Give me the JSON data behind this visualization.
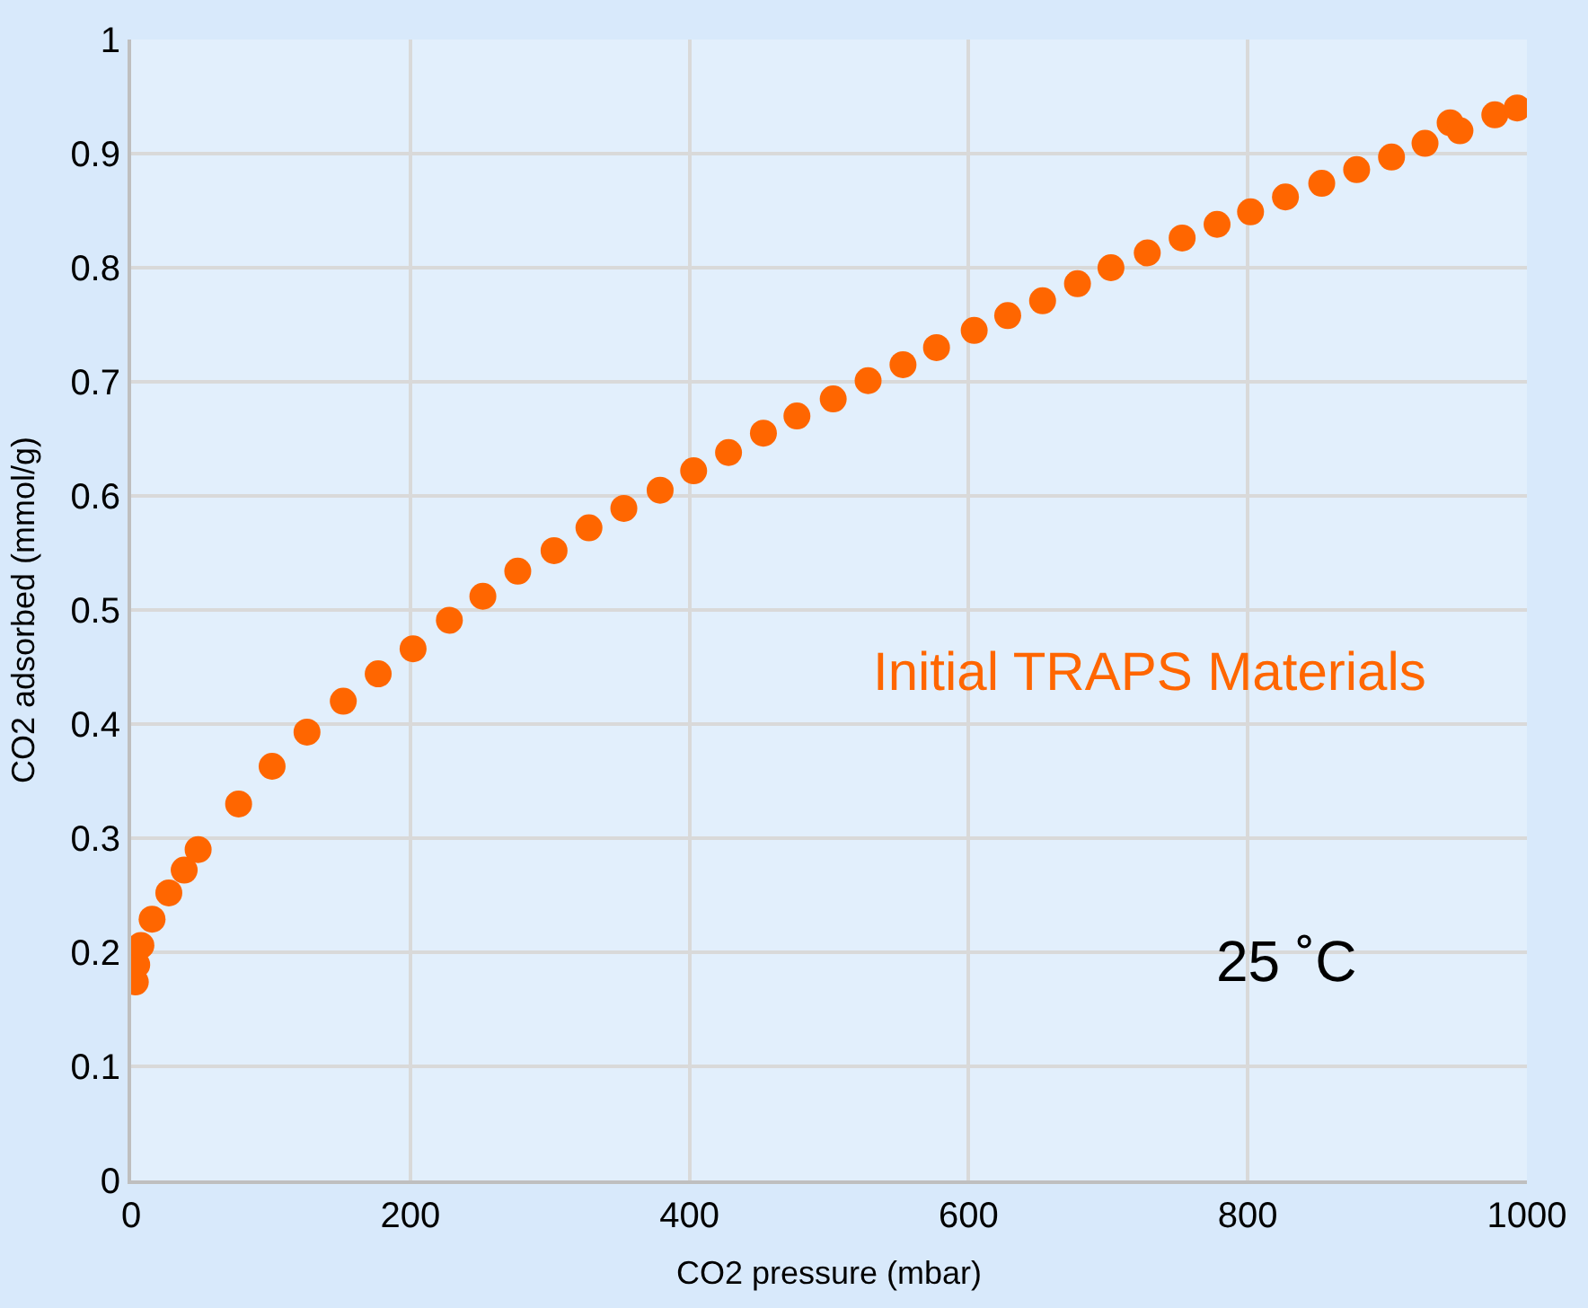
{
  "chart_data": {
    "type": "scatter",
    "xlabel": "CO2 pressure (mbar)",
    "ylabel": "CO2 adsorbed (mmol/g)",
    "x": [
      3,
      4,
      7,
      15,
      27,
      38,
      48,
      77,
      101,
      126,
      152,
      177,
      202,
      228,
      252,
      277,
      303,
      328,
      353,
      379,
      403,
      428,
      453,
      477,
      503,
      528,
      553,
      577,
      604,
      628,
      653,
      678,
      702,
      728,
      753,
      778,
      802,
      827,
      853,
      878,
      903,
      927,
      945,
      952,
      977,
      993
    ],
    "series": [
      {
        "color": "#ff6600",
        "values": [
          0.174,
          0.189,
          0.206,
          0.229,
          0.252,
          0.272,
          0.29,
          0.33,
          0.363,
          0.393,
          0.42,
          0.444,
          0.466,
          0.491,
          0.512,
          0.534,
          0.552,
          0.572,
          0.589,
          0.605,
          0.622,
          0.638,
          0.655,
          0.67,
          0.685,
          0.701,
          0.715,
          0.73,
          0.745,
          0.758,
          0.771,
          0.786,
          0.8,
          0.813,
          0.826,
          0.838,
          0.849,
          0.862,
          0.874,
          0.886,
          0.897,
          0.909,
          0.927,
          0.92,
          0.934,
          0.94
        ]
      }
    ],
    "xlim": [
      0,
      1000
    ],
    "xticks": [
      0,
      200,
      400,
      600,
      800,
      1000
    ],
    "ylim": [
      0,
      1
    ],
    "yticks": [
      0,
      0.1,
      0.2,
      0.3,
      0.4,
      0.5,
      0.6,
      0.7,
      0.8,
      0.9,
      1
    ],
    "grid": true,
    "marker": "circle",
    "legend": false,
    "annotations": [
      "Initial TRAPS Materials",
      "25 ˚C"
    ]
  }
}
